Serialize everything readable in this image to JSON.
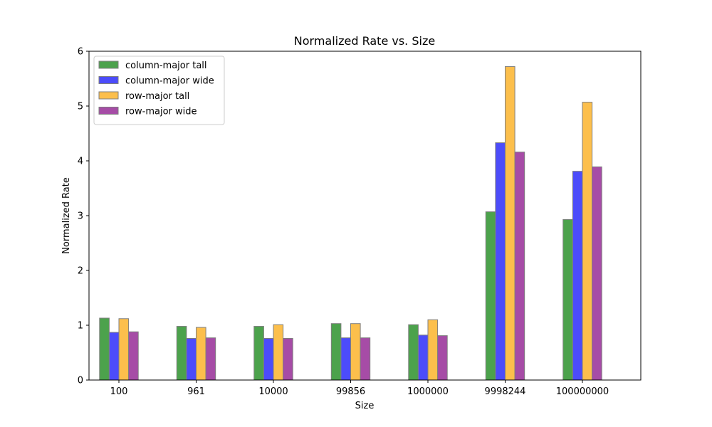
{
  "chart_data": {
    "type": "bar",
    "title": "Normalized Rate vs. Size",
    "xlabel": "Size",
    "ylabel": "Normalized Rate",
    "categories": [
      "100",
      "961",
      "10000",
      "99856",
      "1000000",
      "9998244",
      "100000000"
    ],
    "ylim": [
      0,
      6
    ],
    "yticks": [
      "0",
      "1",
      "2",
      "3",
      "4",
      "5",
      "6"
    ],
    "grid": false,
    "legend_position": "top-left",
    "series": [
      {
        "name": "column-major tall",
        "color": "#4ca24c",
        "values": [
          1.13,
          0.98,
          0.98,
          1.03,
          1.01,
          3.07,
          2.93
        ]
      },
      {
        "name": "column-major wide",
        "color": "#4c4cfa",
        "values": [
          0.87,
          0.76,
          0.76,
          0.77,
          0.82,
          4.33,
          3.81
        ]
      },
      {
        "name": "row-major tall",
        "color": "#fcbf4c",
        "values": [
          1.12,
          0.96,
          1.01,
          1.03,
          1.1,
          5.72,
          5.07
        ]
      },
      {
        "name": "row-major wide",
        "color": "#a64ca6",
        "values": [
          0.88,
          0.77,
          0.76,
          0.77,
          0.81,
          4.16,
          3.89
        ]
      }
    ]
  }
}
